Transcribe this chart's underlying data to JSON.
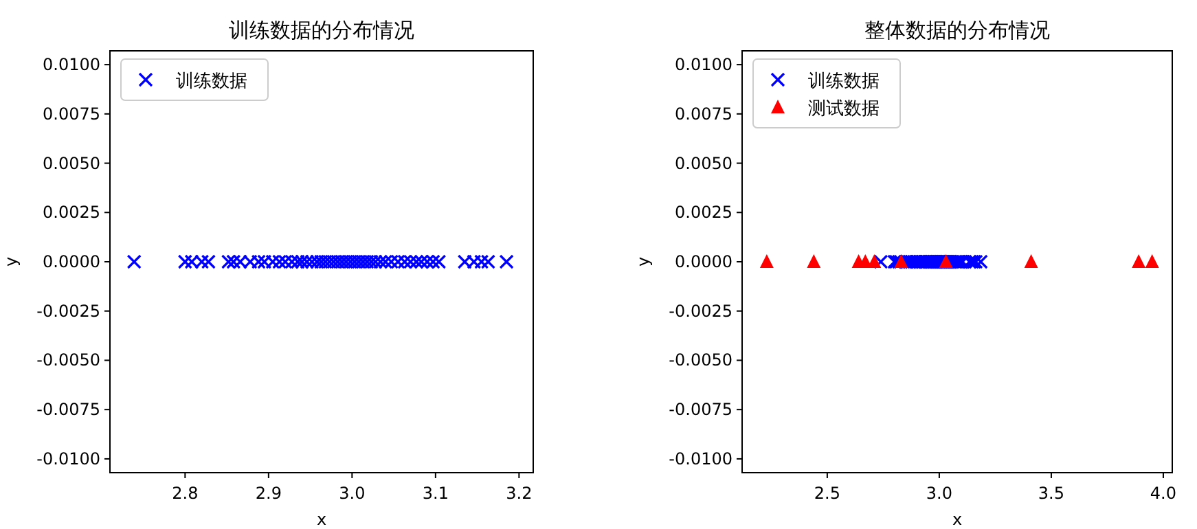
{
  "chart_data": [
    {
      "type": "scatter",
      "title": "训练数据的分布情况",
      "xlabel": "x",
      "ylabel": "y",
      "legend": "top left",
      "xlim": [
        2.71,
        3.217
      ],
      "ylim": [
        -0.0107,
        0.0107
      ],
      "xticks": [
        {
          "value": 2.8,
          "label": "2.8"
        },
        {
          "value": 2.9,
          "label": "2.9"
        },
        {
          "value": 3.0,
          "label": "3.0"
        },
        {
          "value": 3.1,
          "label": "3.1"
        },
        {
          "value": 3.2,
          "label": "3.2"
        }
      ],
      "yticks": [
        {
          "value": -0.01,
          "label": "-0.0100"
        },
        {
          "value": -0.0075,
          "label": "-0.0075"
        },
        {
          "value": -0.005,
          "label": "-0.0050"
        },
        {
          "value": -0.0025,
          "label": "-0.0025"
        },
        {
          "value": 0,
          "label": "0.0000"
        },
        {
          "value": 0.0025,
          "label": "0.0025"
        },
        {
          "value": 0.005,
          "label": "0.0050"
        },
        {
          "value": 0.0075,
          "label": "0.0075"
        },
        {
          "value": 0.01,
          "label": "0.0100"
        }
      ],
      "series": [
        {
          "name": "训练数据",
          "color": "#0000ff",
          "marker": "cross",
          "x": [
            2.739,
            2.8,
            2.808,
            2.82,
            2.828,
            2.852,
            2.858,
            2.866,
            2.878,
            2.888,
            2.895,
            2.905,
            2.913,
            2.92,
            2.928,
            2.935,
            2.94,
            2.946,
            2.952,
            2.958,
            2.963,
            2.968,
            2.973,
            2.978,
            2.983,
            2.988,
            2.993,
            2.998,
            3.003,
            3.008,
            3.013,
            3.018,
            3.023,
            3.028,
            3.034,
            3.04,
            3.047,
            3.055,
            3.063,
            3.07,
            3.077,
            3.083,
            3.09,
            3.097,
            3.104,
            3.135,
            3.146,
            3.155,
            3.163,
            3.185
          ],
          "values": [
            0,
            0,
            0,
            0,
            0,
            0,
            0,
            0,
            0,
            0,
            0,
            0,
            0,
            0,
            0,
            0,
            0,
            0,
            0,
            0,
            0,
            0,
            0,
            0,
            0,
            0,
            0,
            0,
            0,
            0,
            0,
            0,
            0,
            0,
            0,
            0,
            0,
            0,
            0,
            0,
            0,
            0,
            0,
            0,
            0,
            0,
            0,
            0,
            0,
            0
          ]
        }
      ]
    },
    {
      "type": "scatter",
      "title": "整体数据的分布情况",
      "xlabel": "x",
      "ylabel": "y",
      "legend": "top left",
      "xlim": [
        2.12,
        4.04
      ],
      "ylim": [
        -0.0107,
        0.0107
      ],
      "xticks": [
        {
          "value": 2.5,
          "label": "2.5"
        },
        {
          "value": 3.0,
          "label": "3.0"
        },
        {
          "value": 3.5,
          "label": "3.5"
        },
        {
          "value": 4.0,
          "label": "4.0"
        }
      ],
      "yticks": [
        {
          "value": -0.01,
          "label": "-0.0100"
        },
        {
          "value": -0.0075,
          "label": "-0.0075"
        },
        {
          "value": -0.005,
          "label": "-0.0050"
        },
        {
          "value": -0.0025,
          "label": "-0.0025"
        },
        {
          "value": 0,
          "label": "0.0000"
        },
        {
          "value": 0.0025,
          "label": "0.0025"
        },
        {
          "value": 0.005,
          "label": "0.0050"
        },
        {
          "value": 0.0075,
          "label": "0.0075"
        },
        {
          "value": 0.01,
          "label": "0.0100"
        }
      ],
      "series": [
        {
          "name": "训练数据",
          "color": "#0000ff",
          "marker": "cross",
          "x": [
            2.739,
            2.8,
            2.808,
            2.82,
            2.828,
            2.852,
            2.858,
            2.866,
            2.878,
            2.888,
            2.895,
            2.905,
            2.913,
            2.92,
            2.928,
            2.935,
            2.94,
            2.946,
            2.952,
            2.958,
            2.963,
            2.968,
            2.973,
            2.978,
            2.983,
            2.988,
            2.993,
            2.998,
            3.003,
            3.008,
            3.013,
            3.018,
            3.023,
            3.028,
            3.034,
            3.04,
            3.047,
            3.055,
            3.063,
            3.07,
            3.077,
            3.083,
            3.09,
            3.097,
            3.104,
            3.135,
            3.146,
            3.155,
            3.163,
            3.185
          ],
          "values": [
            0,
            0,
            0,
            0,
            0,
            0,
            0,
            0,
            0,
            0,
            0,
            0,
            0,
            0,
            0,
            0,
            0,
            0,
            0,
            0,
            0,
            0,
            0,
            0,
            0,
            0,
            0,
            0,
            0,
            0,
            0,
            0,
            0,
            0,
            0,
            0,
            0,
            0,
            0,
            0,
            0,
            0,
            0,
            0,
            0,
            0,
            0,
            0,
            0,
            0
          ]
        },
        {
          "name": "测试数据",
          "color": "#ff0000",
          "marker": "triangle",
          "x": [
            2.23,
            2.44,
            2.64,
            2.67,
            2.71,
            2.83,
            3.03,
            3.41,
            3.89,
            3.95
          ],
          "values": [
            0,
            0,
            0,
            0,
            0,
            0,
            0,
            0,
            0,
            0
          ]
        }
      ]
    }
  ]
}
